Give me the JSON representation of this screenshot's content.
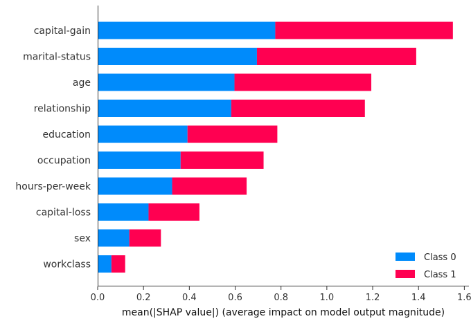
{
  "chart_data": {
    "type": "bar",
    "orientation": "horizontal",
    "stacked": true,
    "categories": [
      "capital-gain",
      "marital-status",
      "age",
      "relationship",
      "education",
      "occupation",
      "hours-per-week",
      "capital-loss",
      "sex",
      "workclass"
    ],
    "series": [
      {
        "name": "Class 0",
        "color": "#008bfb",
        "values": [
          0.775,
          0.695,
          0.597,
          0.583,
          0.392,
          0.362,
          0.325,
          0.222,
          0.138,
          0.06
        ]
      },
      {
        "name": "Class 1",
        "color": "#ff0051",
        "values": [
          0.775,
          0.695,
          0.597,
          0.583,
          0.392,
          0.362,
          0.325,
          0.222,
          0.138,
          0.06
        ]
      }
    ],
    "xlabel": "mean(|SHAP value|) (average impact on model output magnitude)",
    "ylabel": "",
    "xlim": [
      0.0,
      1.62
    ],
    "xticks": [
      "0.0",
      "0.2",
      "0.4",
      "0.6",
      "0.8",
      "1.0",
      "1.2",
      "1.4",
      "1.6"
    ],
    "grid": false,
    "legend_position": "bottom-right"
  }
}
